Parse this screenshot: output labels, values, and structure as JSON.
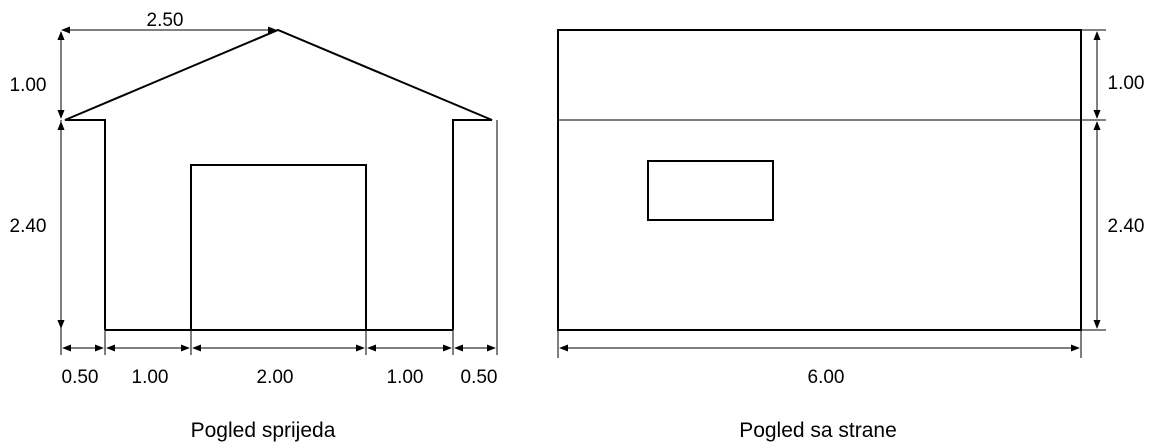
{
  "front_view": {
    "caption": "Pogled sprijeda",
    "dims": {
      "roof_half_width": "2.50",
      "roof_height": "1.00",
      "wall_height": "2.40",
      "bottom": [
        "0.50",
        "1.00",
        "2.00",
        "1.00",
        "0.50"
      ]
    }
  },
  "side_view": {
    "caption": "Pogled sa strane",
    "dims": {
      "roof_height": "1.00",
      "wall_height": "2.40",
      "length": "6.00"
    }
  }
}
